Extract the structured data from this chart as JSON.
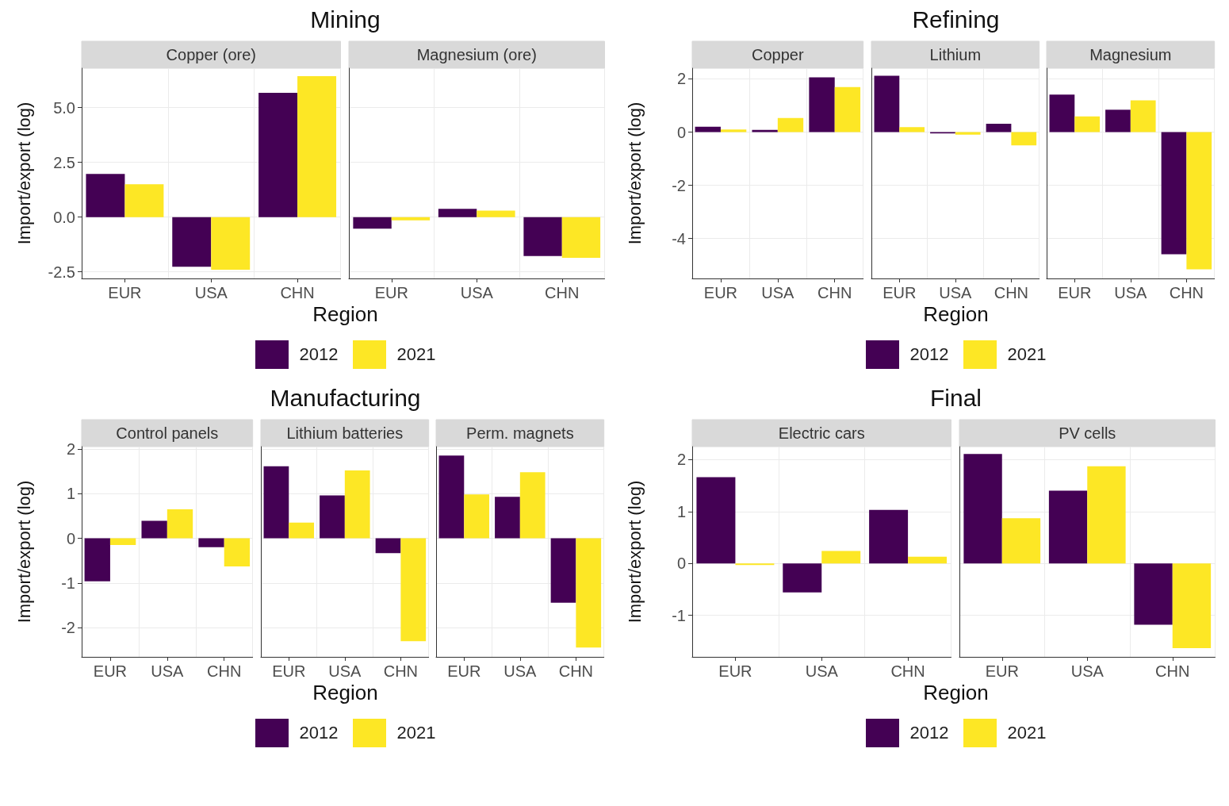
{
  "chart_data": [
    {
      "type": "bar",
      "title": "Mining",
      "subtitle": "Copper (ore)",
      "xlabel": "Region",
      "ylabel": "Import/export (log)",
      "categories": [
        "EUR",
        "USA",
        "CHN"
      ],
      "ylim": [
        -2.8,
        6.8
      ],
      "yticks": [
        {
          "value": -2.5,
          "label": "-2.5"
        },
        {
          "value": 0,
          "label": "0.0"
        },
        {
          "value": 2.5,
          "label": "2.5"
        },
        {
          "value": 5,
          "label": "5.0"
        }
      ],
      "grid": true,
      "legend": "bottom",
      "series": [
        {
          "name": "2012",
          "color": "#440154",
          "values": [
            1.97,
            -2.27,
            5.68
          ]
        },
        {
          "name": "2021",
          "color": "#fde725",
          "values": [
            1.5,
            -2.4,
            6.44
          ]
        }
      ]
    },
    {
      "type": "bar",
      "subtitle": "Magnesium (ore)",
      "categories": [
        "EUR",
        "USA",
        "CHN"
      ],
      "ylim": [
        -2.8,
        6.8
      ],
      "yticks": [
        -2.5,
        0,
        2.5,
        5
      ],
      "grid": true,
      "tick_labels": "x",
      "series": [
        {
          "color": "#440154",
          "values": [
            -0.53,
            0.38,
            -1.78
          ]
        },
        {
          "color": "#fde725",
          "values": [
            -0.15,
            0.3,
            -1.86
          ]
        }
      ]
    },
    {
      "type": "bar",
      "subtitle": "Copper",
      "xlabel": "Region",
      "ylabel": "Import/export (log)",
      "categories": [
        "EUR",
        "USA",
        "CHN"
      ],
      "ylim": [
        -5.5,
        2.4
      ],
      "yticks": [
        -4,
        -2,
        0,
        2
      ],
      "grid": true,
      "legend": "bottom",
      "series": [
        {
          "name": "2012",
          "color": "#440154",
          "values": [
            0.2,
            0.08,
            2.06
          ]
        },
        {
          "name": "2021",
          "color": "#fde725",
          "values": [
            0.1,
            0.53,
            1.69
          ]
        }
      ]
    },
    {
      "type": "bar",
      "title": "Refining",
      "subtitle": "Lithium",
      "categories": [
        "EUR",
        "USA",
        "CHN"
      ],
      "ylim": [
        -5.5,
        2.4
      ],
      "yticks": [
        -4,
        -2,
        0,
        2
      ],
      "grid": true,
      "tick_labels": "x",
      "series": [
        {
          "color": "#440154",
          "values": [
            2.12,
            -0.05,
            0.31
          ]
        },
        {
          "color": "#fde725",
          "values": [
            0.19,
            -0.1,
            -0.5
          ]
        }
      ]
    },
    {
      "type": "bar",
      "subtitle": "Magnesium",
      "categories": [
        "EUR",
        "USA",
        "CHN"
      ],
      "ylim": [
        -5.5,
        2.4
      ],
      "yticks": [
        -4,
        -2,
        0,
        2
      ],
      "grid": true,
      "tick_labels": "x",
      "series": [
        {
          "color": "#440154",
          "values": [
            1.41,
            0.84,
            -4.59
          ]
        },
        {
          "color": "#fde725",
          "values": [
            0.59,
            1.19,
            -5.16
          ]
        }
      ]
    },
    {
      "type": "bar",
      "subtitle": "Control panels",
      "xlabel": "Region",
      "ylabel": "Import/export (log)",
      "categories": [
        "EUR",
        "USA",
        "CHN"
      ],
      "ylim": [
        -2.65,
        2.05
      ],
      "yticks": [
        -2,
        -1,
        0,
        1,
        2
      ],
      "grid": true,
      "legend": "bottom",
      "series": [
        {
          "name": "2012",
          "color": "#440154",
          "values": [
            -0.96,
            0.39,
            -0.2
          ]
        },
        {
          "name": "2021",
          "color": "#fde725",
          "values": [
            -0.15,
            0.65,
            -0.63
          ]
        }
      ]
    },
    {
      "type": "bar",
      "title": "Manufacturing",
      "subtitle": "Lithium batteries",
      "categories": [
        "EUR",
        "USA",
        "CHN"
      ],
      "ylim": [
        -2.65,
        2.05
      ],
      "yticks": [
        -2,
        -1,
        0,
        1,
        2
      ],
      "grid": true,
      "tick_labels": "x",
      "series": [
        {
          "color": "#440154",
          "values": [
            1.61,
            0.96,
            -0.33
          ]
        },
        {
          "color": "#fde725",
          "values": [
            0.35,
            1.52,
            -2.3
          ]
        }
      ]
    },
    {
      "type": "bar",
      "subtitle": "Perm. magnets",
      "categories": [
        "EUR",
        "USA",
        "CHN"
      ],
      "ylim": [
        -2.65,
        2.05
      ],
      "yticks": [
        -2,
        -1,
        0,
        1,
        2
      ],
      "grid": true,
      "tick_labels": "x",
      "series": [
        {
          "color": "#440154",
          "values": [
            1.85,
            0.93,
            -1.44
          ]
        },
        {
          "color": "#fde725",
          "values": [
            0.98,
            1.48,
            -2.44
          ]
        }
      ]
    },
    {
      "type": "bar",
      "title": "Final",
      "subtitle": "Electric cars",
      "xlabel": "Region",
      "ylabel": "Import/export (log)",
      "categories": [
        "EUR",
        "USA",
        "CHN"
      ],
      "ylim": [
        -1.8,
        2.25
      ],
      "yticks": [
        -1,
        0,
        1,
        2
      ],
      "grid": true,
      "legend": "bottom",
      "series": [
        {
          "name": "2012",
          "color": "#440154",
          "values": [
            1.66,
            -0.56,
            1.03
          ]
        },
        {
          "name": "2021",
          "color": "#fde725",
          "values": [
            -0.03,
            0.24,
            0.13
          ]
        }
      ]
    },
    {
      "type": "bar",
      "subtitle": "PV cells",
      "categories": [
        "EUR",
        "USA",
        "CHN"
      ],
      "ylim": [
        -1.8,
        2.25
      ],
      "yticks": [
        -1,
        0,
        1,
        2
      ],
      "grid": true,
      "tick_labels": "x",
      "series": [
        {
          "color": "#440154",
          "values": [
            2.11,
            1.4,
            -1.18
          ]
        },
        {
          "color": "#fde725",
          "values": [
            0.87,
            1.87,
            -1.63
          ]
        }
      ]
    }
  ]
}
